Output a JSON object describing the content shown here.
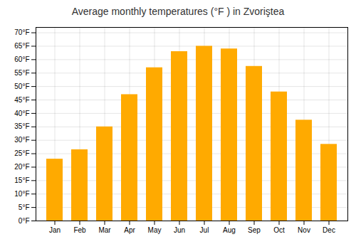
{
  "chart_data": {
    "type": "bar",
    "title": "Average monthly temperatures (°F ) in Zvoriştea",
    "categories": [
      "Jan",
      "Feb",
      "Mar",
      "Apr",
      "May",
      "Jun",
      "Jul",
      "Aug",
      "Sep",
      "Oct",
      "Nov",
      "Dec"
    ],
    "values": [
      23,
      26.5,
      35,
      47,
      57,
      63,
      65,
      64,
      57.5,
      48,
      37.5,
      28.5
    ],
    "color": "#FFAA00",
    "ylim": [
      0,
      72
    ],
    "yticks": [
      {
        "value": 0,
        "label": "0°F"
      },
      {
        "value": 5,
        "label": "5°F"
      },
      {
        "value": 10,
        "label": "10°F"
      },
      {
        "value": 15,
        "label": "15°F"
      },
      {
        "value": 20,
        "label": "20°F"
      },
      {
        "value": 25,
        "label": "25°F"
      },
      {
        "value": 30,
        "label": "30°F"
      },
      {
        "value": 35,
        "label": "35°F"
      },
      {
        "value": 40,
        "label": "40°F"
      },
      {
        "value": 45,
        "label": "45°F"
      },
      {
        "value": 50,
        "label": "50°F"
      },
      {
        "value": 55,
        "label": "55°F"
      },
      {
        "value": 60,
        "label": "60°F"
      },
      {
        "value": 65,
        "label": "65°F"
      },
      {
        "value": 70,
        "label": "70°F"
      }
    ],
    "grid": true
  }
}
